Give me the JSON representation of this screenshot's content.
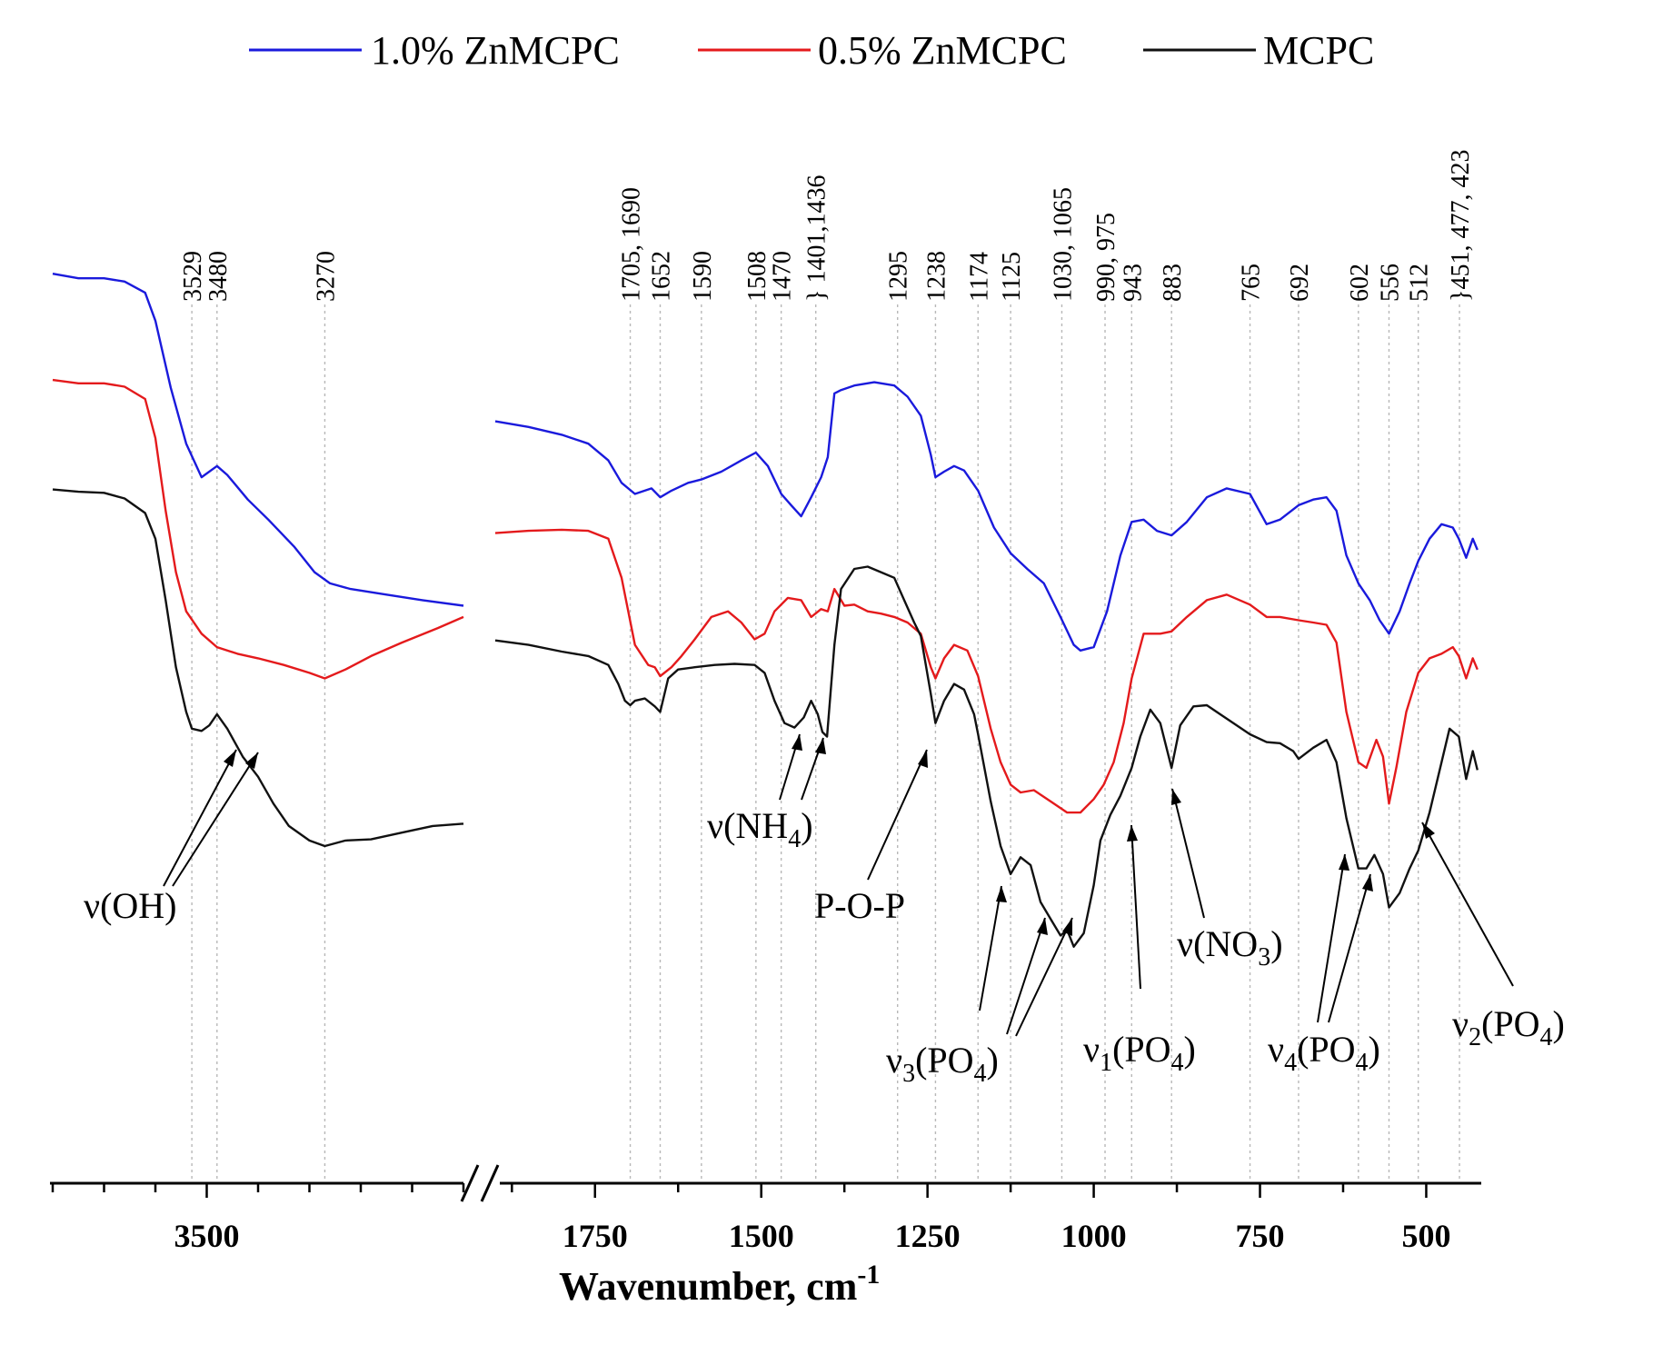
{
  "chart_data": {
    "type": "line",
    "title": "",
    "xlabel": "Wavenumber, cm",
    "xlabel_superscript": "-1",
    "ylabel": "",
    "y_ticks_shown": false,
    "x_axis_break": true,
    "segments": [
      {
        "name": "high",
        "xlim": [
          3800,
          3000
        ],
        "ticks": [
          3500
        ]
      },
      {
        "name": "low",
        "xlim": [
          1900,
          420
        ],
        "ticks": [
          1750,
          1500,
          1250,
          1000,
          750,
          500
        ]
      }
    ],
    "legend": {
      "position": "top",
      "entries": [
        "1.0% ZnMCPC",
        "0.5% ZnMCPC",
        "MCPC"
      ]
    },
    "peak_labels": [
      {
        "text": "3529",
        "x": 3529
      },
      {
        "text": "3480",
        "x": 3480
      },
      {
        "text": "3270",
        "x": 3270
      },
      {
        "text": "1705, 1690",
        "x": 1697
      },
      {
        "text": "1652",
        "x": 1652
      },
      {
        "text": "1590",
        "x": 1590
      },
      {
        "text": "1508",
        "x": 1508
      },
      {
        "text": "1470",
        "x": 1470
      },
      {
        "text": "} 1401,1436",
        "x": 1418
      },
      {
        "text": "1295",
        "x": 1295
      },
      {
        "text": "1238",
        "x": 1238
      },
      {
        "text": "1174",
        "x": 1174
      },
      {
        "text": "1125",
        "x": 1125
      },
      {
        "text": "1030, 1065",
        "x": 1048
      },
      {
        "text": "990, 975",
        "x": 983
      },
      {
        "text": "943",
        "x": 943
      },
      {
        "text": "883",
        "x": 883
      },
      {
        "text": "765",
        "x": 765
      },
      {
        "text": "692",
        "x": 692
      },
      {
        "text": "602",
        "x": 602
      },
      {
        "text": "556",
        "x": 556
      },
      {
        "text": "512",
        "x": 512
      },
      {
        "text": "}451, 477, 423",
        "x": 450
      }
    ],
    "band_annotations": [
      {
        "label": "ν(OH)",
        "base": "ν",
        "group": "(OH)",
        "sub": "",
        "tail": ""
      },
      {
        "label": "ν(NH4)",
        "base": "ν",
        "group": "(NH",
        "sub": "4",
        "tail": ")"
      },
      {
        "label": "P-O-P",
        "base": "",
        "group": "P-O-P",
        "sub": "",
        "tail": ""
      },
      {
        "label": "ν3(PO4)",
        "base": "ν",
        "base_sub": "3",
        "group": "(PO",
        "sub": "4",
        "tail": ")"
      },
      {
        "label": "ν1(PO4)",
        "base": "ν",
        "base_sub": "1",
        "group": "(PO",
        "sub": "4",
        "tail": ")"
      },
      {
        "label": "ν(NO3)",
        "base": "ν",
        "group": "(NO",
        "sub": "3",
        "tail": ")"
      },
      {
        "label": "ν4(PO4)",
        "base": "ν",
        "base_sub": "4",
        "group": "(PO",
        "sub": "4",
        "tail": ")"
      },
      {
        "label": "ν2(PO4)",
        "base": "ν",
        "base_sub": "2",
        "group": "(PO",
        "sub": "4",
        "tail": ")"
      }
    ],
    "series": [
      {
        "name": "1.0% ZnMCPC",
        "color": "#1a1adc",
        "units": "relative transmittance (offset)",
        "high": {
          "x": [
            3800,
            3750,
            3700,
            3660,
            3620,
            3600,
            3570,
            3540,
            3510,
            3480,
            3460,
            3420,
            3380,
            3330,
            3290,
            3260,
            3220,
            3150,
            3080,
            3000
          ],
          "y": [
            0.812,
            0.808,
            0.808,
            0.805,
            0.795,
            0.77,
            0.71,
            0.66,
            0.63,
            0.64,
            0.632,
            0.61,
            0.592,
            0.568,
            0.545,
            0.535,
            0.53,
            0.525,
            0.52,
            0.515
          ]
        },
        "low": {
          "x": [
            1900,
            1850,
            1800,
            1760,
            1730,
            1710,
            1690,
            1665,
            1652,
            1635,
            1610,
            1590,
            1560,
            1530,
            1508,
            1490,
            1470,
            1455,
            1440,
            1425,
            1410,
            1400,
            1390,
            1380,
            1360,
            1330,
            1300,
            1280,
            1260,
            1245,
            1238,
            1225,
            1210,
            1195,
            1174,
            1150,
            1125,
            1100,
            1075,
            1050,
            1030,
            1020,
            1000,
            980,
            960,
            943,
            925,
            905,
            883,
            860,
            830,
            800,
            765,
            740,
            720,
            692,
            670,
            650,
            635,
            620,
            602,
            585,
            570,
            556,
            540,
            525,
            512,
            495,
            477,
            460,
            451,
            440,
            430,
            423
          ],
          "y": [
            0.68,
            0.675,
            0.668,
            0.66,
            0.645,
            0.625,
            0.615,
            0.62,
            0.612,
            0.618,
            0.625,
            0.628,
            0.635,
            0.645,
            0.652,
            0.64,
            0.615,
            0.605,
            0.595,
            0.612,
            0.63,
            0.648,
            0.705,
            0.708,
            0.712,
            0.715,
            0.712,
            0.702,
            0.685,
            0.65,
            0.63,
            0.635,
            0.64,
            0.636,
            0.618,
            0.585,
            0.562,
            0.548,
            0.535,
            0.505,
            0.48,
            0.475,
            0.478,
            0.51,
            0.56,
            0.59,
            0.592,
            0.582,
            0.578,
            0.59,
            0.612,
            0.62,
            0.615,
            0.588,
            0.592,
            0.605,
            0.61,
            0.612,
            0.6,
            0.56,
            0.535,
            0.52,
            0.502,
            0.49,
            0.51,
            0.535,
            0.555,
            0.575,
            0.588,
            0.585,
            0.575,
            0.558,
            0.575,
            0.565
          ]
        }
      },
      {
        "name": "0.5% ZnMCPC",
        "color": "#e41a1c",
        "units": "relative transmittance (offset)",
        "high": {
          "x": [
            3800,
            3750,
            3700,
            3660,
            3620,
            3600,
            3580,
            3560,
            3540,
            3510,
            3480,
            3440,
            3400,
            3350,
            3300,
            3270,
            3230,
            3180,
            3120,
            3050,
            3000
          ],
          "y": [
            0.717,
            0.714,
            0.714,
            0.711,
            0.7,
            0.665,
            0.6,
            0.545,
            0.51,
            0.49,
            0.478,
            0.472,
            0.468,
            0.462,
            0.455,
            0.45,
            0.458,
            0.47,
            0.482,
            0.495,
            0.505
          ]
        },
        "low": {
          "x": [
            1900,
            1850,
            1800,
            1760,
            1730,
            1710,
            1690,
            1670,
            1660,
            1652,
            1635,
            1620,
            1600,
            1575,
            1550,
            1530,
            1510,
            1495,
            1480,
            1460,
            1440,
            1425,
            1410,
            1400,
            1390,
            1385,
            1375,
            1360,
            1340,
            1320,
            1300,
            1280,
            1260,
            1245,
            1238,
            1225,
            1210,
            1190,
            1174,
            1155,
            1140,
            1125,
            1110,
            1090,
            1065,
            1040,
            1020,
            1000,
            985,
            970,
            955,
            943,
            925,
            900,
            883,
            860,
            830,
            800,
            765,
            740,
            720,
            692,
            670,
            650,
            635,
            620,
            602,
            590,
            575,
            565,
            556,
            545,
            530,
            512,
            495,
            477,
            460,
            451,
            440,
            430,
            423
          ],
          "y": [
            0.58,
            0.582,
            0.583,
            0.582,
            0.575,
            0.54,
            0.48,
            0.462,
            0.46,
            0.452,
            0.46,
            0.47,
            0.485,
            0.505,
            0.51,
            0.5,
            0.485,
            0.49,
            0.51,
            0.522,
            0.52,
            0.505,
            0.512,
            0.51,
            0.53,
            0.525,
            0.515,
            0.516,
            0.51,
            0.508,
            0.505,
            0.5,
            0.49,
            0.46,
            0.45,
            0.468,
            0.48,
            0.475,
            0.452,
            0.405,
            0.375,
            0.355,
            0.348,
            0.35,
            0.34,
            0.33,
            0.33,
            0.342,
            0.355,
            0.375,
            0.41,
            0.45,
            0.49,
            0.49,
            0.492,
            0.505,
            0.52,
            0.525,
            0.516,
            0.505,
            0.505,
            0.502,
            0.5,
            0.498,
            0.482,
            0.42,
            0.375,
            0.37,
            0.395,
            0.38,
            0.338,
            0.37,
            0.42,
            0.455,
            0.468,
            0.472,
            0.478,
            0.47,
            0.45,
            0.468,
            0.458
          ]
        }
      },
      {
        "name": "MCPC",
        "color": "#111111",
        "units": "relative transmittance (offset)",
        "high": {
          "x": [
            3800,
            3750,
            3700,
            3660,
            3620,
            3600,
            3580,
            3560,
            3540,
            3529,
            3510,
            3495,
            3480,
            3460,
            3430,
            3400,
            3370,
            3340,
            3300,
            3270,
            3230,
            3180,
            3120,
            3060,
            3000
          ],
          "y": [
            0.619,
            0.617,
            0.616,
            0.611,
            0.598,
            0.575,
            0.52,
            0.46,
            0.42,
            0.405,
            0.403,
            0.408,
            0.418,
            0.405,
            0.38,
            0.362,
            0.338,
            0.318,
            0.305,
            0.3,
            0.305,
            0.306,
            0.312,
            0.318,
            0.32
          ]
        },
        "low": {
          "x": [
            1900,
            1850,
            1800,
            1760,
            1730,
            1715,
            1705,
            1697,
            1690,
            1675,
            1660,
            1652,
            1640,
            1625,
            1600,
            1570,
            1540,
            1510,
            1495,
            1480,
            1465,
            1450,
            1436,
            1425,
            1415,
            1408,
            1401,
            1390,
            1380,
            1360,
            1340,
            1320,
            1300,
            1285,
            1270,
            1260,
            1245,
            1238,
            1225,
            1210,
            1195,
            1180,
            1174,
            1155,
            1140,
            1125,
            1110,
            1095,
            1080,
            1065,
            1050,
            1040,
            1030,
            1015,
            1000,
            990,
            975,
            960,
            943,
            930,
            915,
            900,
            883,
            870,
            850,
            830,
            810,
            790,
            765,
            740,
            720,
            700,
            692,
            670,
            650,
            635,
            620,
            602,
            590,
            578,
            565,
            556,
            540,
            525,
            512,
            495,
            477,
            465,
            451,
            440,
            430,
            423
          ],
          "y": [
            0.484,
            0.48,
            0.474,
            0.47,
            0.462,
            0.445,
            0.43,
            0.426,
            0.43,
            0.432,
            0.425,
            0.42,
            0.45,
            0.458,
            0.46,
            0.462,
            0.463,
            0.462,
            0.455,
            0.43,
            0.41,
            0.406,
            0.415,
            0.43,
            0.418,
            0.402,
            0.398,
            0.48,
            0.53,
            0.548,
            0.55,
            0.545,
            0.54,
            0.52,
            0.5,
            0.488,
            0.436,
            0.41,
            0.43,
            0.445,
            0.44,
            0.418,
            0.4,
            0.34,
            0.3,
            0.275,
            0.29,
            0.283,
            0.25,
            0.235,
            0.22,
            0.225,
            0.21,
            0.222,
            0.265,
            0.305,
            0.328,
            0.345,
            0.37,
            0.398,
            0.422,
            0.41,
            0.37,
            0.408,
            0.425,
            0.426,
            0.418,
            0.41,
            0.4,
            0.393,
            0.392,
            0.385,
            0.378,
            0.388,
            0.395,
            0.375,
            0.325,
            0.28,
            0.28,
            0.292,
            0.275,
            0.245,
            0.258,
            0.28,
            0.296,
            0.33,
            0.375,
            0.405,
            0.398,
            0.36,
            0.385,
            0.368
          ]
        }
      }
    ]
  }
}
